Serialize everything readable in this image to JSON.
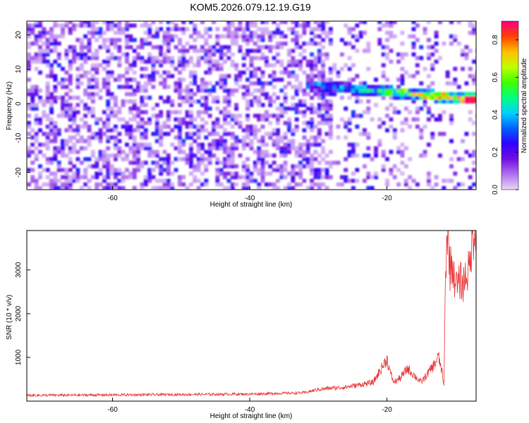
{
  "title": "KOM5.2026.079.12.19.G19",
  "chart_data": [
    {
      "type": "heatmap",
      "xlabel": "Height of straight line (km)",
      "ylabel": "Frequency (Hz)",
      "xlim": [
        -72.5,
        -7
      ],
      "ylim": [
        -25,
        24
      ],
      "xticks": [
        -60,
        -40,
        -20
      ],
      "yticks": [
        20,
        10,
        0,
        -10,
        -20
      ],
      "grid": false,
      "colorbar": {
        "label": "Normalized spectral amplitude",
        "range": [
          0,
          0.9
        ],
        "ticks": [
          0.0,
          0.2,
          0.4,
          0.6,
          0.8
        ],
        "colors": [
          "#e8d8f8",
          "#b070f0",
          "#7010e0",
          "#3000ff",
          "#0060ff",
          "#00d0ff",
          "#00ff80",
          "#40ff00",
          "#c0ff00",
          "#ffc000",
          "#ff4000",
          "#ff0080"
        ]
      },
      "features": [
        {
          "name": "strong narrow band near 0-4 Hz",
          "x_range": [
            -32,
            -7
          ],
          "freq_approx": [
            5,
            0.5
          ],
          "peak_amplitude": 0.9
        },
        {
          "name": "diffuse background noise",
          "x_range": [
            -72.5,
            -25
          ],
          "amplitude_approx": 0.15
        }
      ]
    },
    {
      "type": "line",
      "xlabel": "Height of straight line (km)",
      "ylabel": "SNR (10 * v/v)",
      "xlim": [
        -72.5,
        -7
      ],
      "ylim": [
        0,
        3900
      ],
      "xticks": [
        -60,
        -40,
        -20
      ],
      "yticks": [
        1000,
        2000,
        3000
      ],
      "grid": false,
      "series": [
        {
          "color": "#e83030",
          "x": [
            -72.5,
            -60,
            -50,
            -40,
            -32,
            -30,
            -28,
            -26,
            -24,
            -22,
            -21,
            -20,
            -19.5,
            -19,
            -18,
            -17,
            -16,
            -15,
            -14,
            -13,
            -12.5,
            -12,
            -11.7,
            -11.5,
            -11.3,
            -11,
            -10.8,
            -10.5,
            -10.2,
            -10,
            -9.8,
            -9.5,
            -9.2,
            -9,
            -8.5,
            -8,
            -7.5,
            -7
          ],
          "y": [
            120,
            130,
            140,
            150,
            180,
            250,
            280,
            300,
            350,
            400,
            650,
            900,
            600,
            400,
            500,
            700,
            550,
            400,
            600,
            800,
            950,
            650,
            300,
            2200,
            3500,
            3400,
            2800,
            3000,
            2600,
            2700,
            2400,
            2500,
            2600,
            2450,
            2700,
            2800,
            3500,
            3800
          ]
        }
      ]
    }
  ]
}
